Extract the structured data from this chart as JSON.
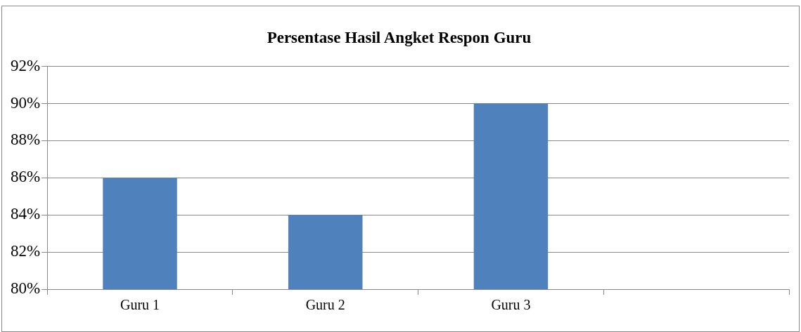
{
  "chart_data": {
    "type": "bar",
    "title": "Persentase Hasil Angket Respon Guru",
    "categories": [
      "Guru 1",
      "Guru 2",
      "Guru 3",
      null
    ],
    "values": [
      86,
      84,
      90,
      null
    ],
    "color": "#4f81bd",
    "ylim": [
      80,
      92
    ],
    "yticks": [
      {
        "value": 80,
        "label": "80%"
      },
      {
        "value": 82,
        "label": "82%"
      },
      {
        "value": 84,
        "label": "84%"
      },
      {
        "value": 86,
        "label": "86%"
      },
      {
        "value": 88,
        "label": "88%"
      },
      {
        "value": 90,
        "label": "90%"
      },
      {
        "value": 92,
        "label": "92%"
      }
    ],
    "grid": "y",
    "legend": false
  }
}
